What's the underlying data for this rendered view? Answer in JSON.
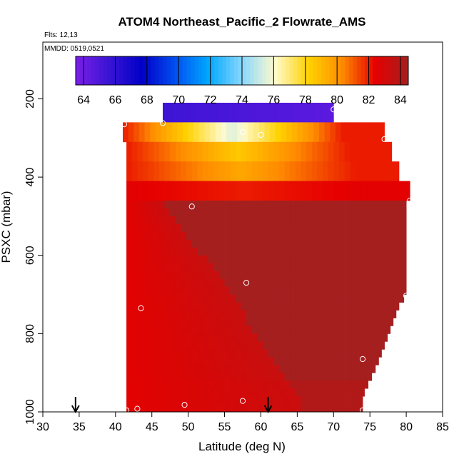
{
  "chart_data": {
    "type": "heatmap",
    "title": "ATOM4 Northeast_Pacific_2 Flowrate_AMS",
    "flights_label": "Flts: 12,13",
    "mmdd_label": "MMDD: 0519,0521",
    "xlabel": "Latitude (deg N)",
    "ylabel": "PSXC (mbar)",
    "xlim": [
      30,
      85
    ],
    "ylim": [
      1000,
      50
    ],
    "x_ticks": [
      30,
      35,
      40,
      45,
      50,
      55,
      60,
      65,
      70,
      75,
      80,
      85
    ],
    "y_ticks": [
      200,
      400,
      600,
      800,
      1000
    ],
    "colorbar": {
      "min": 63.5,
      "max": 84.5,
      "ticks": [
        64,
        66,
        68,
        70,
        72,
        74,
        76,
        78,
        80,
        82,
        84
      ],
      "colors": [
        "#7b1fe8",
        "#3a14d4",
        "#0000c8",
        "#0050f0",
        "#00a8ff",
        "#88d8ff",
        "#fffacd",
        "#ffd200",
        "#ff8c00",
        "#e60000",
        "#a51f1f"
      ]
    },
    "cells": [
      {
        "lat0": 46.5,
        "lat1": 70,
        "p0": 210,
        "p1": 260,
        "v0": 65.5,
        "v1": 64.5
      },
      {
        "lat0": 41,
        "lat1": 77,
        "p0": 260,
        "p1": 310,
        "v0": 82,
        "v1": 82,
        "mid": 75.5
      },
      {
        "lat0": 41.5,
        "lat1": 78,
        "p0": 310,
        "p1": 360,
        "v0": 82,
        "v1": 82,
        "mid": 78.5
      },
      {
        "lat0": 41.5,
        "lat1": 79,
        "p0": 360,
        "p1": 410,
        "v0": 82,
        "v1": 82,
        "mid": 79.5
      },
      {
        "lat0": 41.5,
        "lat1": 80.5,
        "p0": 410,
        "p1": 460,
        "v0": 82.5,
        "v1": 83.5,
        "mid": 82
      },
      {
        "lat0": 41.5,
        "lat1": 80,
        "p0": 460,
        "p1": 920,
        "v0": 82.5,
        "v1": 84.5,
        "wedge": true
      },
      {
        "lat0": 41.5,
        "lat1": 75,
        "p0": 920,
        "p1": 1000,
        "v0": 82.5,
        "v1": 83.5
      }
    ],
    "right_edge": [
      [
        460,
        80
      ],
      [
        700,
        80
      ],
      [
        730,
        79
      ],
      [
        780,
        78
      ],
      [
        830,
        77
      ],
      [
        880,
        76
      ],
      [
        920,
        75
      ],
      [
        960,
        74
      ],
      [
        1000,
        74
      ]
    ],
    "wedge_edge": [
      [
        460,
        46
      ],
      [
        520,
        49
      ],
      [
        560,
        50.5
      ],
      [
        600,
        52
      ],
      [
        650,
        54
      ],
      [
        700,
        56
      ],
      [
        760,
        58
      ],
      [
        820,
        60
      ],
      [
        880,
        62
      ],
      [
        920,
        64
      ],
      [
        960,
        65
      ],
      [
        1000,
        66
      ]
    ],
    "points": [
      [
        41.2,
        265
      ],
      [
        46.5,
        262
      ],
      [
        57.5,
        285
      ],
      [
        60,
        292
      ],
      [
        70,
        227
      ],
      [
        77,
        303
      ],
      [
        80.5,
        460
      ],
      [
        50.5,
        475
      ],
      [
        58,
        670
      ],
      [
        43.5,
        735
      ],
      [
        80,
        703
      ],
      [
        74,
        865
      ],
      [
        57.5,
        972
      ],
      [
        49.5,
        982
      ],
      [
        43,
        992
      ],
      [
        41.5,
        996
      ],
      [
        74,
        996
      ]
    ],
    "arrows": [
      34.5,
      61
    ]
  }
}
